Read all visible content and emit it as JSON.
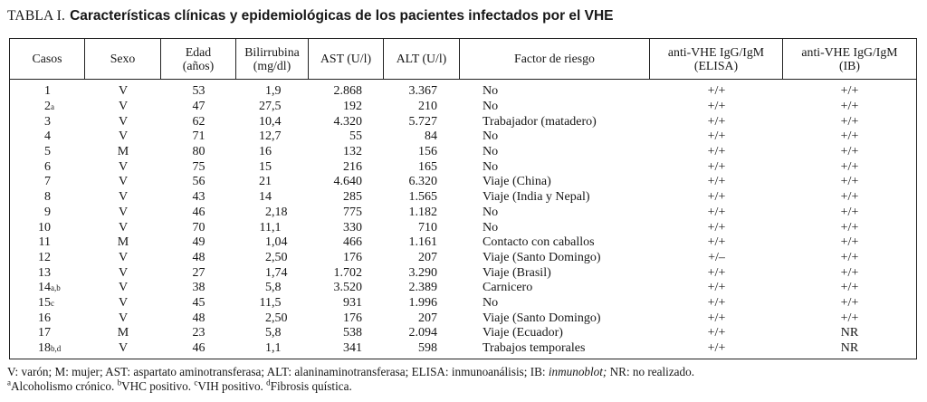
{
  "title": {
    "prefix": "TABLA I.",
    "text": "Características clínicas y epidemiológicas de los pacientes infectados por el VHE"
  },
  "table": {
    "headers": [
      "Casos",
      "Sexo",
      "Edad\n(años)",
      "Bilirrubina\n(mg/dl)",
      "AST (U/l)",
      "ALT (U/l)",
      "Factor de riesgo",
      "anti-VHE IgG/IgM\n(ELISA)",
      "anti-VHE IgG/IgM\n(IB)"
    ],
    "rows": [
      {
        "caso": "1",
        "caso_sup": "",
        "sexo": "V",
        "edad": "53",
        "bilirrubina": "1,9",
        "ast": "2.868",
        "alt": "3.367",
        "factor": "No",
        "elisa": "+/+",
        "ib": "+/+"
      },
      {
        "caso": "2",
        "caso_sup": "a",
        "sexo": "V",
        "edad": "47",
        "bilirrubina": "27,5",
        "ast": "192",
        "alt": "210",
        "factor": "No",
        "elisa": "+/+",
        "ib": "+/+"
      },
      {
        "caso": "3",
        "caso_sup": "",
        "sexo": "V",
        "edad": "62",
        "bilirrubina": "10,4",
        "ast": "4.320",
        "alt": "5.727",
        "factor": "Trabajador (matadero)",
        "elisa": "+/+",
        "ib": "+/+"
      },
      {
        "caso": "4",
        "caso_sup": "",
        "sexo": "V",
        "edad": "71",
        "bilirrubina": "12,7",
        "ast": "55",
        "alt": "84",
        "factor": "No",
        "elisa": "+/+",
        "ib": "+/+"
      },
      {
        "caso": "5",
        "caso_sup": "",
        "sexo": "M",
        "edad": "80",
        "bilirrubina": "16",
        "ast": "132",
        "alt": "156",
        "factor": "No",
        "elisa": "+/+",
        "ib": "+/+"
      },
      {
        "caso": "6",
        "caso_sup": "",
        "sexo": "V",
        "edad": "75",
        "bilirrubina": "15",
        "ast": "216",
        "alt": "165",
        "factor": "No",
        "elisa": "+/+",
        "ib": "+/+"
      },
      {
        "caso": "7",
        "caso_sup": "",
        "sexo": "V",
        "edad": "56",
        "bilirrubina": "21",
        "ast": "4.640",
        "alt": "6.320",
        "factor": "Viaje (China)",
        "elisa": "+/+",
        "ib": "+/+"
      },
      {
        "caso": "8",
        "caso_sup": "",
        "sexo": "V",
        "edad": "43",
        "bilirrubina": "14",
        "ast": "285",
        "alt": "1.565",
        "factor": "Viaje (India y Nepal)",
        "elisa": "+/+",
        "ib": "+/+"
      },
      {
        "caso": "9",
        "caso_sup": "",
        "sexo": "V",
        "edad": "46",
        "bilirrubina": "2,18",
        "ast": "775",
        "alt": "1.182",
        "factor": "No",
        "elisa": "+/+",
        "ib": "+/+"
      },
      {
        "caso": "10",
        "caso_sup": "",
        "sexo": "V",
        "edad": "70",
        "bilirrubina": "11,1",
        "ast": "330",
        "alt": "710",
        "factor": "No",
        "elisa": "+/+",
        "ib": "+/+"
      },
      {
        "caso": "11",
        "caso_sup": "",
        "sexo": "M",
        "edad": "49",
        "bilirrubina": "1,04",
        "ast": "466",
        "alt": "1.161",
        "factor": "Contacto con caballos",
        "elisa": "+/+",
        "ib": "+/+"
      },
      {
        "caso": "12",
        "caso_sup": "",
        "sexo": "V",
        "edad": "48",
        "bilirrubina": "2,50",
        "ast": "176",
        "alt": "207",
        "factor": "Viaje (Santo Domingo)",
        "elisa": "+/–",
        "ib": "+/+"
      },
      {
        "caso": "13",
        "caso_sup": "",
        "sexo": "V",
        "edad": "27",
        "bilirrubina": "1,74",
        "ast": "1.702",
        "alt": "3.290",
        "factor": "Viaje (Brasil)",
        "elisa": "+/+",
        "ib": "+/+"
      },
      {
        "caso": "14",
        "caso_sup": "a,b",
        "sexo": "V",
        "edad": "38",
        "bilirrubina": "5,8",
        "ast": "3.520",
        "alt": "2.389",
        "factor": "Carnicero",
        "elisa": "+/+",
        "ib": "+/+"
      },
      {
        "caso": "15",
        "caso_sup": "c",
        "sexo": "V",
        "edad": "45",
        "bilirrubina": "11,5",
        "ast": "931",
        "alt": "1.996",
        "factor": "No",
        "elisa": "+/+",
        "ib": "+/+"
      },
      {
        "caso": "16",
        "caso_sup": "",
        "sexo": "V",
        "edad": "48",
        "bilirrubina": "2,50",
        "ast": "176",
        "alt": "207",
        "factor": "Viaje (Santo Domingo)",
        "elisa": "+/+",
        "ib": "+/+"
      },
      {
        "caso": "17",
        "caso_sup": "",
        "sexo": "M",
        "edad": "23",
        "bilirrubina": "5,8",
        "ast": "538",
        "alt": "2.094",
        "factor": "Viaje (Ecuador)",
        "elisa": "+/+",
        "ib": "NR"
      },
      {
        "caso": "18",
        "caso_sup": "b,d",
        "sexo": "V",
        "edad": "46",
        "bilirrubina": "1,1",
        "ast": "341",
        "alt": "598",
        "factor": "Trabajos temporales",
        "elisa": "+/+",
        "ib": "NR"
      }
    ]
  },
  "footnotes": {
    "line1_parts": [
      {
        "text": "V: varón; M: mujer; AST: aspartato aminotransferasa; ALT: alaninaminotransferasa; ELISA: inmunoanálisis; IB: ",
        "italic": false
      },
      {
        "text": "inmunoblot;",
        "italic": true
      },
      {
        "text": " NR: no realizado.",
        "italic": false
      }
    ],
    "line2_parts": [
      {
        "sup": "a",
        "text": "Alcoholismo crónico. "
      },
      {
        "sup": "b",
        "text": "VHC positivo. "
      },
      {
        "sup": "c",
        "text": "VIH positivo. "
      },
      {
        "sup": "d",
        "text": "Fibrosis quística."
      }
    ]
  },
  "colors": {
    "text": "#161616",
    "border": "#222222",
    "background": "#ffffff"
  }
}
